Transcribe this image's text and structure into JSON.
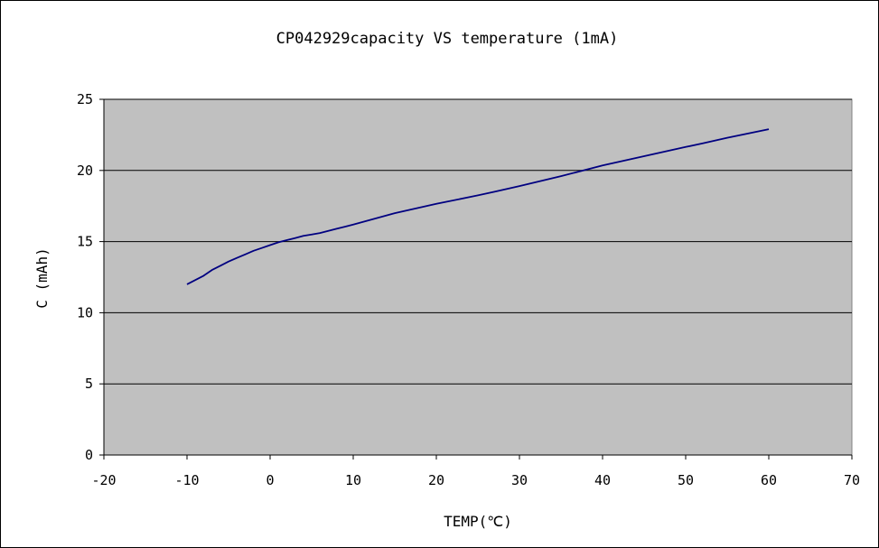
{
  "chart_data": {
    "type": "line",
    "title": "CP042929capacity VS temperature (1mA)",
    "xlabel": "TEMP(℃)",
    "ylabel": "C (mAh)",
    "xlim": [
      -20,
      70
    ],
    "ylim": [
      0,
      25
    ],
    "x_ticks": [
      "-20",
      "-10",
      "0",
      "10",
      "20",
      "30",
      "40",
      "50",
      "60",
      "70"
    ],
    "y_ticks": [
      "0",
      "5",
      "10",
      "15",
      "20",
      "25"
    ],
    "grid": "horizontal",
    "legend": "none",
    "series": [
      {
        "x": [
          -10,
          -9,
          -8,
          -7,
          -6,
          -5,
          -4,
          -3,
          -2,
          -1,
          0,
          1,
          2,
          3,
          4,
          5,
          6,
          7,
          8,
          9,
          10,
          15,
          20,
          25,
          27,
          30,
          35,
          40,
          45,
          50,
          52,
          55,
          60
        ],
        "values": [
          12.0,
          12.3,
          12.6,
          13.0,
          13.3,
          13.6,
          13.85,
          14.1,
          14.35,
          14.55,
          14.75,
          14.95,
          15.1,
          15.25,
          15.4,
          15.5,
          15.6,
          15.75,
          15.9,
          16.05,
          16.2,
          17.0,
          17.65,
          18.25,
          18.5,
          18.9,
          19.6,
          20.35,
          21.0,
          21.65,
          21.9,
          22.3,
          22.9
        ],
        "color": "#000080"
      }
    ]
  },
  "colors": {
    "plot_background": "#c0c0c0",
    "line": "#000080",
    "gridline": "#000000",
    "border": "#000000"
  }
}
